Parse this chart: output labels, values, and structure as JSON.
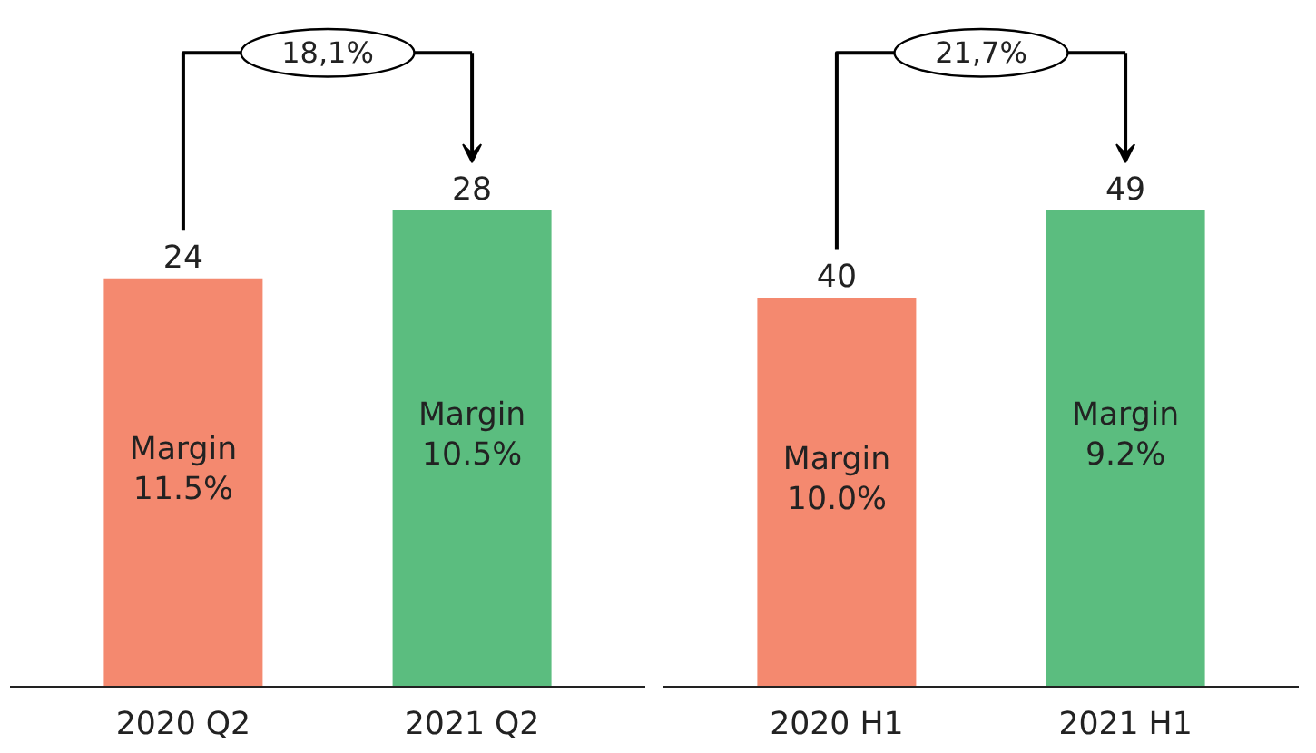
{
  "chart_data": [
    {
      "type": "bar",
      "categories": [
        "2020 Q2",
        "2021 Q2"
      ],
      "values": [
        24,
        28
      ],
      "colors": [
        "#f4896f",
        "#5bbd7f"
      ],
      "data_labels": true,
      "grid": false,
      "tick_labels": "x",
      "annotations": [
        "Margin\n11.5%",
        "Margin\n10.5%",
        "18,1%"
      ]
    },
    {
      "type": "bar",
      "categories": [
        "2020 H1",
        "2021 H1"
      ],
      "values": [
        40,
        49
      ],
      "colors": [
        "#f4896f",
        "#5bbd7f"
      ],
      "data_labels": true,
      "grid": false,
      "tick_labels": "x",
      "annotations": [
        "Margin\n10.0%",
        "Margin\n9.2%",
        "21,7%"
      ]
    }
  ]
}
